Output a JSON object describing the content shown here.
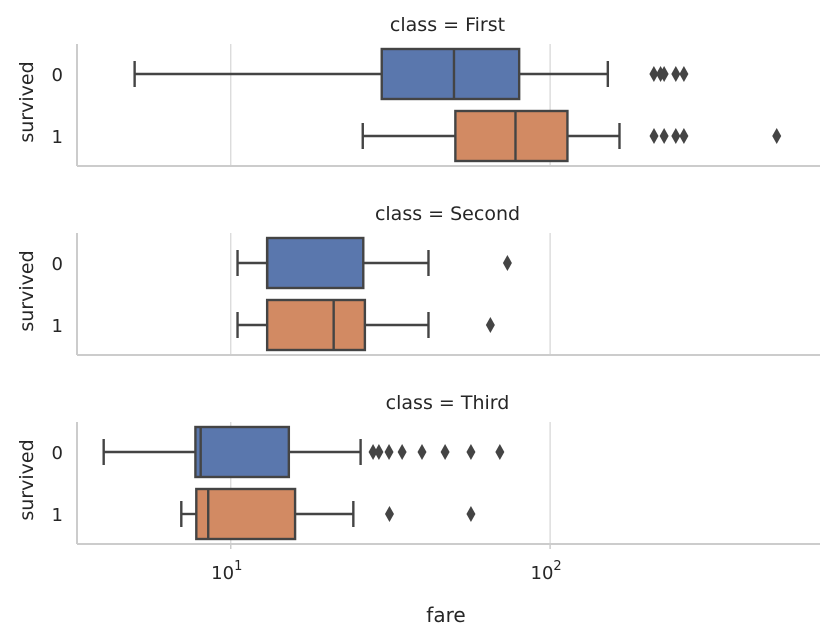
{
  "chart_data": {
    "type": "boxplot",
    "xlabel": "fare",
    "ylabel": "survived",
    "x_scale": "log",
    "x_range": [
      3.3,
      700
    ],
    "x_ticks": [
      {
        "value": 10,
        "base": "10",
        "exp": "1"
      },
      {
        "value": 100,
        "base": "10",
        "exp": "2"
      }
    ],
    "grid": "vertical",
    "categories": [
      "0",
      "1"
    ],
    "colors": {
      "0": "#5a77ad",
      "1": "#d28a63"
    },
    "panels": [
      {
        "title": "class = First",
        "boxes": [
          {
            "category": "0",
            "whisker_low": 5.0,
            "q1": 29.7,
            "median": 50.0,
            "q3": 80.0,
            "whisker_high": 151.6,
            "outliers": [
              211.3,
              221.8,
              227.5,
              247.5,
              262.4
            ]
          },
          {
            "category": "1",
            "whisker_low": 25.9,
            "q1": 50.5,
            "median": 77.9,
            "q3": 113.3,
            "whisker_high": 164.9,
            "outliers": [
              211.5,
              227.5,
              247.5,
              262.4,
              512.3
            ]
          }
        ]
      },
      {
        "title": "class = Second",
        "boxes": [
          {
            "category": "0",
            "whisker_low": 10.5,
            "q1": 13.0,
            "median": 13.0,
            "q3": 26.0,
            "whisker_high": 41.6,
            "outliers": [
              73.5
            ]
          },
          {
            "category": "1",
            "whisker_low": 10.5,
            "q1": 13.0,
            "median": 21.0,
            "q3": 26.3,
            "whisker_high": 41.6,
            "outliers": [
              65.0
            ]
          }
        ]
      },
      {
        "title": "class = Third",
        "boxes": [
          {
            "category": "0",
            "whisker_low": 4.0,
            "q1": 7.75,
            "median": 8.05,
            "q3": 15.2,
            "whisker_high": 25.5,
            "outliers": [
              27.9,
              29.1,
              31.3,
              34.4,
              39.7,
              46.9,
              56.5,
              69.6
            ]
          },
          {
            "category": "1",
            "whisker_low": 7.0,
            "q1": 7.8,
            "median": 8.5,
            "q3": 15.9,
            "whisker_high": 24.2,
            "outliers": [
              31.4,
              56.5
            ]
          }
        ]
      }
    ]
  }
}
